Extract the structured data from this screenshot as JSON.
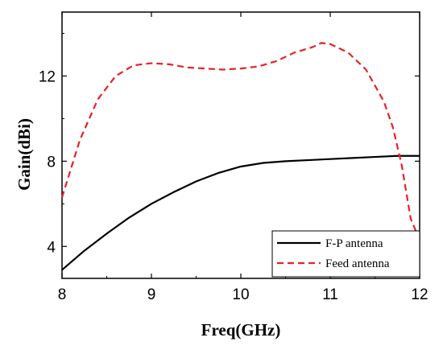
{
  "chart_data": {
    "type": "line",
    "title": "",
    "xlabel": "Freq(GHz)",
    "ylabel": "Gain(dBi)",
    "xlim": [
      8,
      12
    ],
    "ylim": [
      2.5,
      15
    ],
    "xticks": [
      8,
      9,
      10,
      11,
      12
    ],
    "yticks": [
      4,
      8,
      12
    ],
    "grid": false,
    "legend_position": "bottom-right",
    "series": [
      {
        "name": "F-P antenna",
        "color": "#000000",
        "style": "solid",
        "x": [
          8.0,
          8.25,
          8.5,
          8.75,
          9.0,
          9.25,
          9.5,
          9.75,
          10.0,
          10.25,
          10.5,
          10.75,
          11.0,
          11.25,
          11.5,
          11.75,
          12.0
        ],
        "y": [
          2.9,
          3.8,
          4.6,
          5.35,
          6.0,
          6.55,
          7.05,
          7.45,
          7.75,
          7.92,
          8.0,
          8.05,
          8.1,
          8.15,
          8.2,
          8.25,
          8.25
        ]
      },
      {
        "name": "Feed antenna",
        "color": "#e8202a",
        "style": "dashed",
        "x": [
          8.0,
          8.2,
          8.4,
          8.6,
          8.8,
          9.0,
          9.2,
          9.4,
          9.6,
          9.8,
          10.0,
          10.2,
          10.4,
          10.6,
          10.8,
          10.9,
          11.0,
          11.2,
          11.4,
          11.6,
          11.7,
          11.8,
          11.9,
          12.0
        ],
        "y": [
          6.3,
          9.0,
          10.9,
          12.0,
          12.5,
          12.6,
          12.55,
          12.4,
          12.35,
          12.3,
          12.35,
          12.45,
          12.7,
          13.1,
          13.35,
          13.55,
          13.5,
          13.1,
          12.3,
          10.8,
          9.6,
          7.8,
          5.3,
          4.3
        ]
      }
    ]
  }
}
